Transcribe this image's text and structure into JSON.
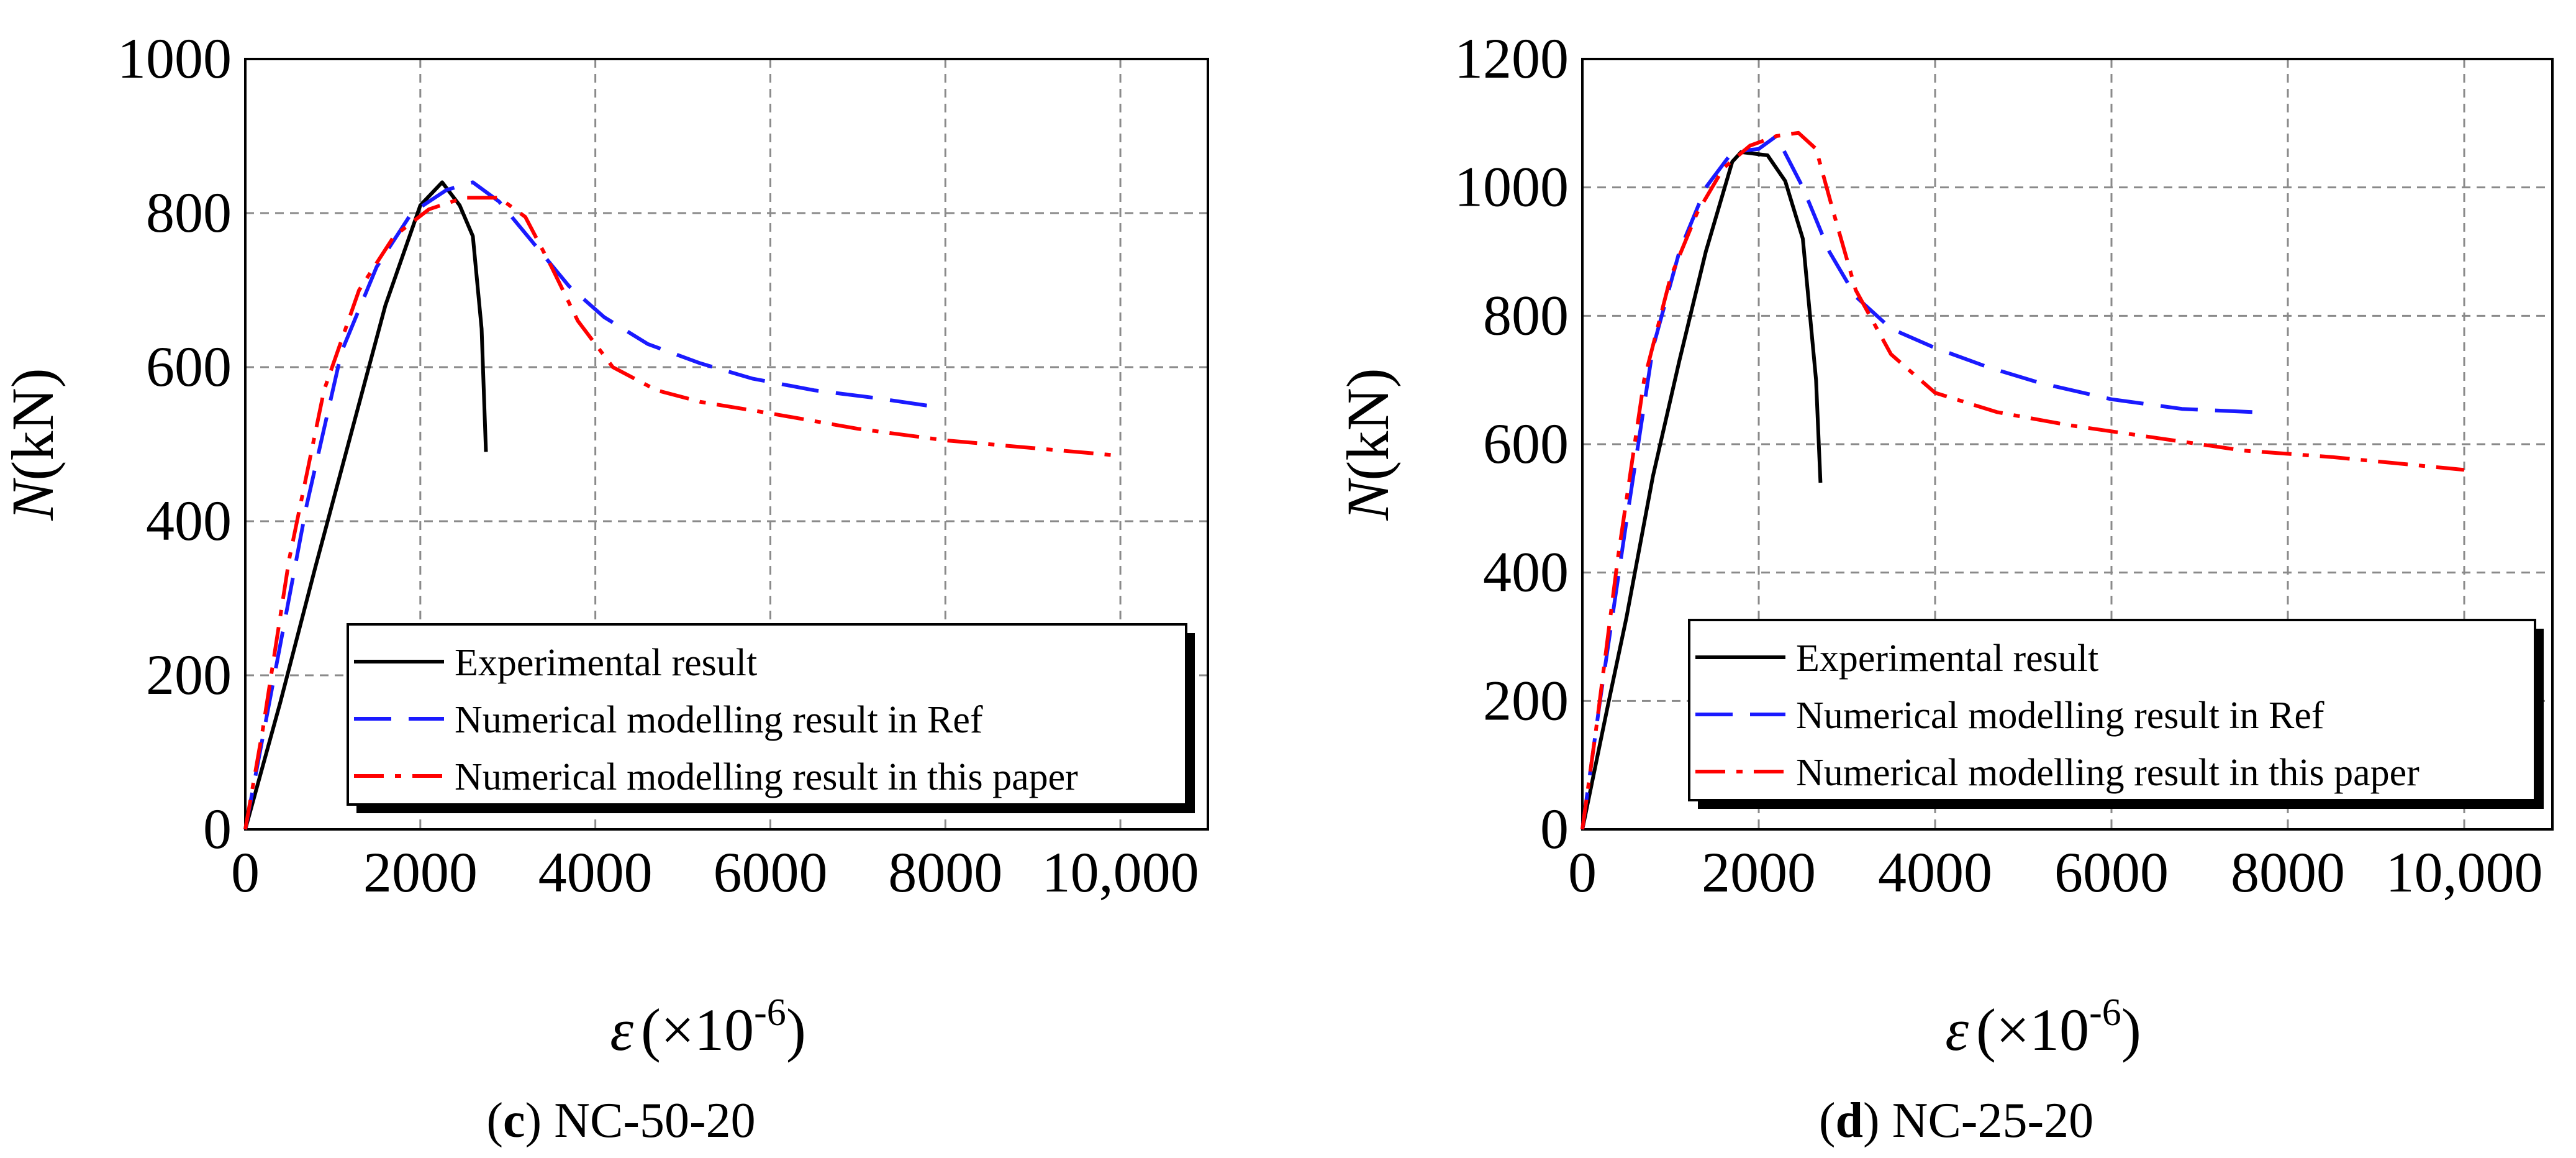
{
  "chart_data": [
    {
      "type": "line",
      "caption_letter": "c",
      "caption_text": " NC-50-20",
      "ylabel": "N",
      "ylabel_unit": "(kN)",
      "xlabel_symbol": "ε",
      "xlabel_unit": "(×10",
      "xlabel_exp": "-6",
      "xlabel_close": ")",
      "xlim": [
        0,
        11000
      ],
      "ylim": [
        0,
        1000
      ],
      "xticks": [
        0,
        2000,
        4000,
        6000,
        8000,
        10000
      ],
      "xtick_labels": [
        "0",
        "2000",
        "4000",
        "6000",
        "8000",
        "10,000"
      ],
      "yticks": [
        0,
        200,
        400,
        600,
        800,
        1000
      ],
      "ytick_labels": [
        "0",
        "200",
        "400",
        "600",
        "800",
        "1000"
      ],
      "grid": true,
      "legend_position": "bottom-right",
      "series": [
        {
          "name": "Experimental result",
          "color": "#000000",
          "style": "solid",
          "x": [
            0,
            400,
            800,
            1200,
            1600,
            2000,
            2250,
            2450,
            2600,
            2700,
            2750
          ],
          "y": [
            0,
            165,
            340,
            510,
            680,
            810,
            840,
            810,
            770,
            650,
            490
          ]
        },
        {
          "name": "Numerical modelling result in Ref",
          "color": "#1a1aff",
          "style": "dashed",
          "x": [
            0,
            300,
            700,
            1100,
            1500,
            1900,
            2300,
            2600,
            2900,
            3300,
            3700,
            4100,
            4600,
            5200,
            5800,
            6500,
            7200,
            7800
          ],
          "y": [
            0,
            180,
            420,
            620,
            730,
            800,
            830,
            840,
            815,
            760,
            705,
            665,
            630,
            605,
            585,
            570,
            560,
            550
          ]
        },
        {
          "name": "Numerical modelling result in this paper",
          "color": "#ff0000",
          "style": "dashdot",
          "x": [
            0,
            200,
            500,
            900,
            1300,
            1700,
            2100,
            2500,
            2900,
            3200,
            3500,
            3800,
            4200,
            4700,
            5200,
            6000,
            7000,
            8000,
            9000,
            10000
          ],
          "y": [
            0,
            130,
            350,
            570,
            700,
            770,
            805,
            820,
            820,
            795,
            730,
            660,
            600,
            570,
            555,
            540,
            520,
            505,
            495,
            485
          ]
        }
      ]
    },
    {
      "type": "line",
      "caption_letter": "d",
      "caption_text": " NC-25-20",
      "ylabel": "N",
      "ylabel_unit": "(kN)",
      "xlabel_symbol": "ε",
      "xlabel_unit": "(×10",
      "xlabel_exp": "-6",
      "xlabel_close": ")",
      "xlim": [
        0,
        11000
      ],
      "ylim": [
        0,
        1200
      ],
      "xticks": [
        0,
        2000,
        4000,
        6000,
        8000,
        10000
      ],
      "xtick_labels": [
        "0",
        "2000",
        "4000",
        "6000",
        "8000",
        "10,000"
      ],
      "yticks": [
        0,
        200,
        400,
        600,
        800,
        1000,
        1200
      ],
      "ytick_labels": [
        "0",
        "200",
        "400",
        "600",
        "800",
        "1000",
        "1200"
      ],
      "grid": true,
      "legend_position": "bottom-right",
      "series": [
        {
          "name": "Experimental result",
          "color": "#000000",
          "style": "solid",
          "x": [
            0,
            300,
            500,
            800,
            1100,
            1400,
            1700,
            1800,
            2100,
            2300,
            2500,
            2650,
            2700
          ],
          "y": [
            0,
            200,
            330,
            550,
            730,
            900,
            1040,
            1055,
            1050,
            1010,
            920,
            700,
            540
          ]
        },
        {
          "name": "Numerical modelling result in Ref",
          "color": "#1a1aff",
          "style": "dashed",
          "x": [
            0,
            200,
            500,
            800,
            1100,
            1400,
            1700,
            2000,
            2200,
            2500,
            2800,
            3100,
            3500,
            4000,
            4600,
            5200,
            6000,
            6800,
            7600
          ],
          "y": [
            0,
            200,
            480,
            750,
            900,
            1000,
            1055,
            1060,
            1080,
            1000,
            900,
            830,
            780,
            750,
            720,
            695,
            670,
            655,
            650
          ]
        },
        {
          "name": "Numerical modelling result in this paper",
          "color": "#ff0000",
          "style": "dashdot",
          "x": [
            0,
            150,
            400,
            700,
            1000,
            1300,
            1600,
            1900,
            2200,
            2450,
            2650,
            2850,
            3100,
            3500,
            4000,
            4700,
            5500,
            6500,
            7500,
            8500,
            10000
          ],
          "y": [
            0,
            150,
            420,
            700,
            860,
            960,
            1030,
            1065,
            1080,
            1085,
            1060,
            960,
            840,
            740,
            680,
            650,
            630,
            610,
            590,
            580,
            560
          ]
        }
      ]
    }
  ]
}
